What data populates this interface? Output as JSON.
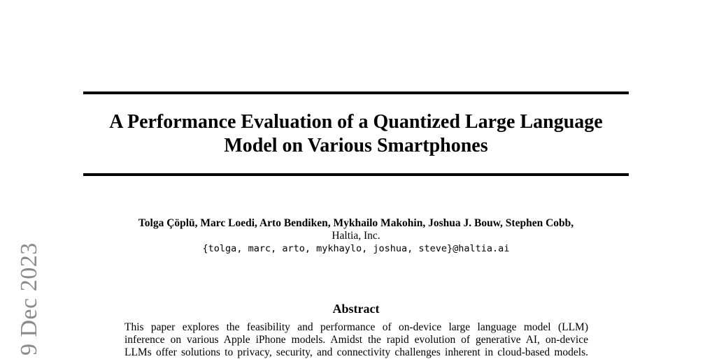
{
  "paper": {
    "title_line1": "A Performance Evaluation of a Quantized Large Language",
    "title_line2": "Model on Various Smartphones",
    "authors": "Tolga Çöplü, Marc Loedi, Arto Bendiken, Mykhailo Makohin, Joshua J. Bouw, Stephen Cobb,",
    "affiliation": "Haltia, Inc.",
    "emails": "{tolga, marc, arto, mykhaylo, joshua, steve}@haltia.ai",
    "abstract_heading": "Abstract",
    "abstract_line1": "This paper explores the feasibility and performance of on-device large language model (LLM)",
    "abstract_line2": "inference on various Apple iPhone models. Amidst the rapid evolution of generative AI, on-device",
    "abstract_line3": "LLMs offer solutions to privacy, security, and connectivity challenges inherent in cloud-based models."
  },
  "sidebar": {
    "arxiv_stamp": "9 Dec 2023"
  }
}
